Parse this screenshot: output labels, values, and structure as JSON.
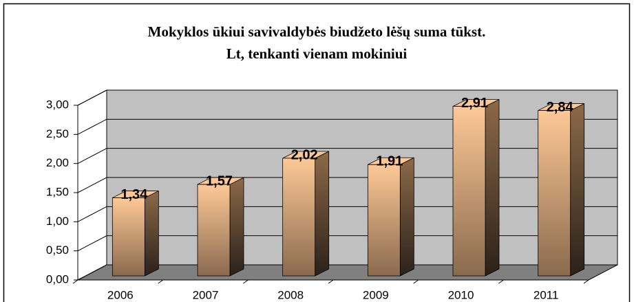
{
  "chart_data": {
    "type": "bar3d",
    "title": [
      "Mokyklos ūkiui savivaldybės biudžeto lėšų suma tūkst.",
      "Lt, tenkanti vienam mokiniui"
    ],
    "categories": [
      "2006",
      "2007",
      "2008",
      "2009",
      "2010",
      "2011"
    ],
    "values": [
      1.34,
      1.57,
      2.02,
      1.91,
      2.91,
      2.84
    ],
    "value_labels": [
      "1,34",
      "1,57",
      "2,02",
      "1,91",
      "2,91",
      "2,84"
    ],
    "color": "#fdc896",
    "ylim": [
      0,
      3
    ],
    "yticks": [
      {
        "value": 0,
        "label": "0,00"
      },
      {
        "value": 0.5,
        "label": "0,50"
      },
      {
        "value": 1,
        "label": "1,00"
      },
      {
        "value": 1.5,
        "label": "1,50"
      },
      {
        "value": 2,
        "label": "2,00"
      },
      {
        "value": 2.5,
        "label": "2,50"
      },
      {
        "value": 3,
        "label": "3,00"
      }
    ],
    "grid": true
  }
}
